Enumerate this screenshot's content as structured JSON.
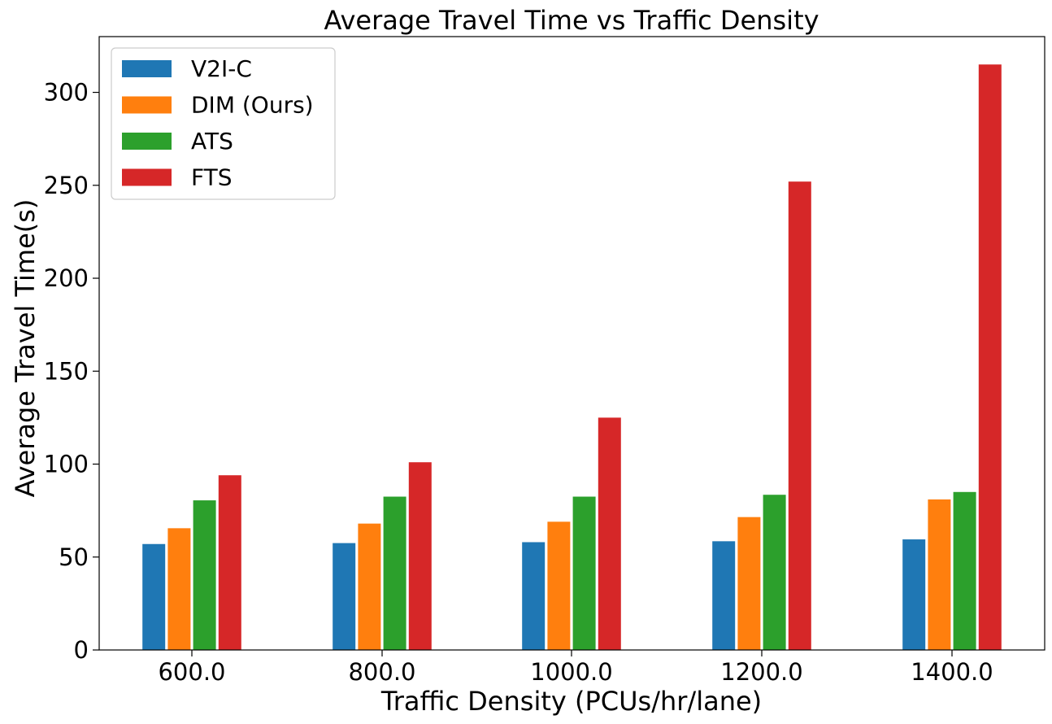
{
  "chart_data": {
    "type": "bar",
    "title": "Average Travel Time vs Traffic Density",
    "xlabel": "Traffic Density (PCUs/hr/lane)",
    "ylabel": "Average Travel Time(s)",
    "categories": [
      "600.0",
      "800.0",
      "1000.0",
      "1200.0",
      "1400.0"
    ],
    "ylim": [
      0,
      330
    ],
    "yticks": [
      0,
      50,
      100,
      150,
      200,
      250,
      300
    ],
    "grid": false,
    "legend_position": "top-left",
    "series": [
      {
        "name": "V2I-C",
        "color": "#1f77b4",
        "values": [
          57,
          57.5,
          58,
          58.5,
          59.5
        ]
      },
      {
        "name": "DIM (Ours)",
        "color": "#ff7f0e",
        "values": [
          65.5,
          68,
          69,
          71.5,
          81
        ]
      },
      {
        "name": "ATS",
        "color": "#2ca02c",
        "values": [
          80.5,
          82.5,
          82.5,
          83.5,
          85
        ]
      },
      {
        "name": "FTS",
        "color": "#d62728",
        "values": [
          94,
          101,
          125,
          252,
          315
        ]
      }
    ]
  }
}
